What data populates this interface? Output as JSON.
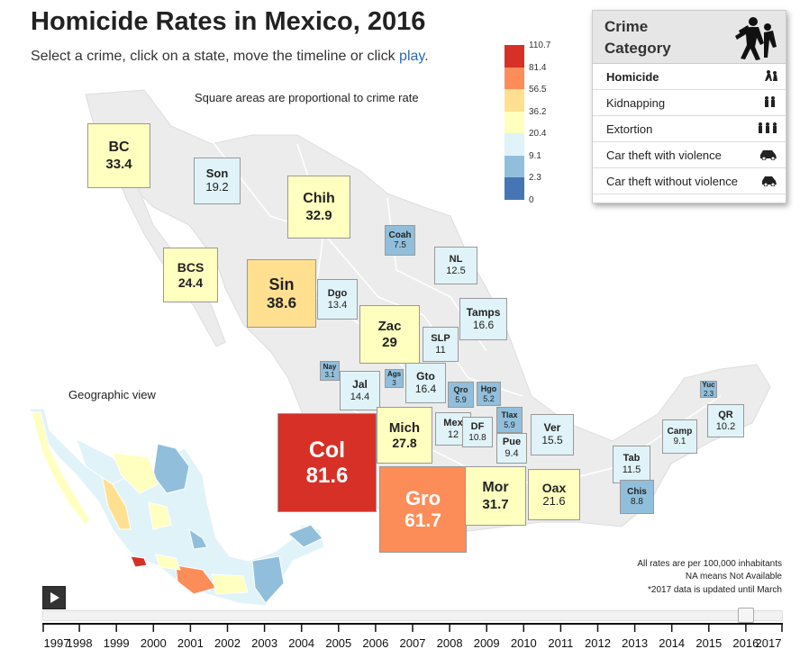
{
  "header": {
    "title": "Homicide Rates in Mexico, 2016",
    "subtitle_prefix": "Select a crime, click on a state, move the timeline or click ",
    "play_link": "play",
    "subtitle_suffix": "."
  },
  "square_note": "Square areas are proportional to crime rate",
  "geographic_label": "Geographic view",
  "legend": {
    "labels": [
      "110.7",
      "81.4",
      "56.5",
      "36.2",
      "20.4",
      "9.1",
      "2.3",
      "0"
    ],
    "colors": [
      "#d73027",
      "#fc8d59",
      "#fee090",
      "#ffffbf",
      "#e0f3f8",
      "#91bfdb",
      "#4575b4"
    ]
  },
  "crime_panel": {
    "title": "Crime Category",
    "header_icon": "crime-figures-icon",
    "items": [
      {
        "label": "Homicide",
        "icon": "homicide-icon",
        "selected": true
      },
      {
        "label": "Kidnapping",
        "icon": "kidnapping-icon",
        "selected": false
      },
      {
        "label": "Extortion",
        "icon": "extortion-icon",
        "selected": false
      },
      {
        "label": "Car theft with violence",
        "icon": "car-theft-violent-icon",
        "selected": false
      },
      {
        "label": "Car theft without violence",
        "icon": "car-theft-icon",
        "selected": false
      }
    ]
  },
  "states": [
    {
      "abbr": "BC",
      "rate": "33.4",
      "color": "#ffffbf"
    },
    {
      "abbr": "Son",
      "rate": "19.2",
      "color": "#e0f3f8"
    },
    {
      "abbr": "Chih",
      "rate": "32.9",
      "color": "#ffffbf"
    },
    {
      "abbr": "Coah",
      "rate": "7.5",
      "color": "#91bfdb"
    },
    {
      "abbr": "NL",
      "rate": "12.5",
      "color": "#e0f3f8"
    },
    {
      "abbr": "BCS",
      "rate": "24.4",
      "color": "#ffffbf"
    },
    {
      "abbr": "Sin",
      "rate": "38.6",
      "color": "#fee090"
    },
    {
      "abbr": "Dgo",
      "rate": "13.4",
      "color": "#e0f3f8"
    },
    {
      "abbr": "Tamps",
      "rate": "16.6",
      "color": "#e0f3f8"
    },
    {
      "abbr": "Zac",
      "rate": "29",
      "color": "#ffffbf"
    },
    {
      "abbr": "SLP",
      "rate": "11",
      "color": "#e0f3f8"
    },
    {
      "abbr": "Nay",
      "rate": "3.1",
      "color": "#91bfdb"
    },
    {
      "abbr": "Jal",
      "rate": "14.4",
      "color": "#e0f3f8"
    },
    {
      "abbr": "Ags",
      "rate": "3",
      "color": "#91bfdb"
    },
    {
      "abbr": "Gto",
      "rate": "16.4",
      "color": "#e0f3f8"
    },
    {
      "abbr": "Qro",
      "rate": "5.9",
      "color": "#91bfdb"
    },
    {
      "abbr": "Hgo",
      "rate": "5.2",
      "color": "#91bfdb"
    },
    {
      "abbr": "Yuc",
      "rate": "2.3",
      "color": "#91bfdb"
    },
    {
      "abbr": "QR",
      "rate": "10.2",
      "color": "#e0f3f8"
    },
    {
      "abbr": "Col",
      "rate": "81.6",
      "color": "#d73027"
    },
    {
      "abbr": "Mich",
      "rate": "27.8",
      "color": "#ffffbf"
    },
    {
      "abbr": "Mex",
      "rate": "12",
      "color": "#e0f3f8"
    },
    {
      "abbr": "DF",
      "rate": "10.8",
      "color": "#e0f3f8"
    },
    {
      "abbr": "Tlax",
      "rate": "5.9",
      "color": "#91bfdb"
    },
    {
      "abbr": "Ver",
      "rate": "15.5",
      "color": "#e0f3f8"
    },
    {
      "abbr": "Camp",
      "rate": "9.1",
      "color": "#e0f3f8"
    },
    {
      "abbr": "Pue",
      "rate": "9.4",
      "color": "#e0f3f8"
    },
    {
      "abbr": "Tab",
      "rate": "11.5",
      "color": "#e0f3f8"
    },
    {
      "abbr": "Gro",
      "rate": "61.7",
      "color": "#fc8d59"
    },
    {
      "abbr": "Mor",
      "rate": "31.7",
      "color": "#ffffbf"
    },
    {
      "abbr": "Oax",
      "rate": "21.6",
      "color": "#ffffbf"
    },
    {
      "abbr": "Chis",
      "rate": "8.8",
      "color": "#91bfdb"
    }
  ],
  "notes": [
    "All rates are per 100,000 inhabitants",
    "NA means Not Available",
    "*2017 data is updated until March"
  ],
  "timeline": {
    "years": [
      "1997",
      "1998",
      "1999",
      "2000",
      "2001",
      "2002",
      "2003",
      "2004",
      "2005",
      "2006",
      "2007",
      "2008",
      "2009",
      "2010",
      "2011",
      "2012",
      "2013",
      "2014",
      "2015",
      "2016",
      "2017"
    ],
    "selected_year": "2016"
  }
}
